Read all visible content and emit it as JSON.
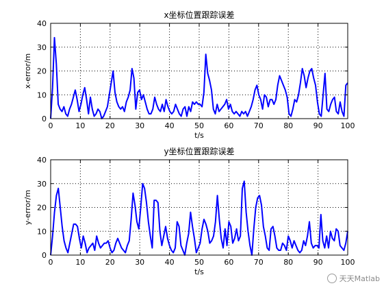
{
  "chart_data": [
    {
      "type": "line",
      "title": "x坐标位置跟踪误差",
      "xlabel": "t/s",
      "ylabel": "x-error/m",
      "xlim": [
        0,
        100
      ],
      "ylim": [
        0,
        40
      ],
      "xticks": [
        "0",
        "10",
        "20",
        "30",
        "40",
        "50",
        "60",
        "70",
        "80",
        "90",
        "100"
      ],
      "yticks": [
        "0",
        "10",
        "20",
        "30",
        "40"
      ],
      "grid": true,
      "color": "#0000ff",
      "series": [
        {
          "values": [
            0,
            13,
            34,
            23,
            6,
            4,
            3,
            5,
            2,
            1,
            4,
            6,
            9,
            12,
            8,
            3,
            6,
            10,
            13,
            8,
            2,
            9,
            4,
            1,
            2,
            4,
            3,
            0,
            1,
            3,
            5,
            10,
            15,
            20,
            11,
            7,
            5,
            4,
            5,
            3,
            7,
            9,
            12,
            21,
            17,
            4,
            11,
            12,
            8,
            10,
            7,
            4,
            2,
            2,
            4,
            9,
            6,
            4,
            3,
            6,
            3,
            8,
            5,
            3,
            2,
            3,
            6,
            4,
            2,
            1,
            4,
            5,
            1,
            5,
            3,
            7,
            6,
            7,
            6,
            6,
            5,
            11,
            27,
            19,
            16,
            12,
            4,
            2,
            6,
            3,
            4,
            5,
            6,
            8,
            4,
            6,
            3,
            2,
            3,
            2,
            1,
            3,
            2,
            3,
            1,
            3,
            5,
            8,
            12,
            14,
            10,
            8,
            4,
            10,
            9,
            5,
            8,
            8,
            6,
            8,
            14,
            18,
            16,
            14,
            12,
            9,
            2,
            1,
            4,
            8,
            7,
            10,
            15,
            21,
            18,
            13,
            17,
            20,
            21,
            17,
            14,
            7,
            2,
            1,
            10,
            19,
            4,
            3,
            6,
            8,
            9,
            3,
            2,
            7,
            3,
            1,
            14,
            15
          ]
        }
      ]
    },
    {
      "type": "line",
      "title": "y坐标位置跟踪误差",
      "xlabel": "t/s",
      "ylabel": "y-error/m",
      "xlim": [
        0,
        100
      ],
      "ylim": [
        0,
        40
      ],
      "xticks": [
        "0",
        "10",
        "20",
        "30",
        "40",
        "50",
        "60",
        "70",
        "80",
        "90",
        "100"
      ],
      "yticks": [
        "0",
        "10",
        "20",
        "30",
        "40"
      ],
      "grid": true,
      "color": "#0000ff",
      "series": [
        {
          "values": [
            0,
            8,
            18,
            25,
            28,
            20,
            12,
            6,
            3,
            1,
            5,
            9,
            13,
            13,
            12,
            7,
            3,
            8,
            5,
            1,
            3,
            4,
            5,
            2,
            8,
            5,
            3,
            4,
            5,
            5,
            6,
            3,
            1,
            2,
            5,
            7,
            5,
            3,
            2,
            1,
            4,
            6,
            15,
            26,
            21,
            14,
            11,
            20,
            30,
            28,
            22,
            14,
            8,
            3,
            23,
            23,
            22,
            10,
            4,
            8,
            12,
            7,
            4,
            2,
            1,
            3,
            14,
            12,
            4,
            2,
            0,
            5,
            9,
            18,
            12,
            7,
            1,
            3,
            5,
            11,
            15,
            13,
            10,
            5,
            6,
            8,
            14,
            25,
            15,
            7,
            3,
            11,
            4,
            14,
            12,
            5,
            7,
            11,
            6,
            8,
            28,
            31,
            18,
            10,
            4,
            0,
            11,
            20,
            24,
            25,
            21,
            12,
            8,
            3,
            2,
            11,
            12,
            8,
            3,
            2,
            2,
            5,
            4,
            2,
            8,
            6,
            3,
            6,
            4,
            2,
            1,
            2,
            6,
            4,
            8,
            14,
            5,
            3,
            4,
            4,
            3,
            17,
            6,
            3,
            8,
            3,
            10,
            7,
            6,
            11,
            10,
            4,
            3,
            2,
            5,
            10
          ]
        }
      ]
    }
  ],
  "watermark": {
    "text": "天天Matlab",
    "icon": "wechat-icon"
  }
}
